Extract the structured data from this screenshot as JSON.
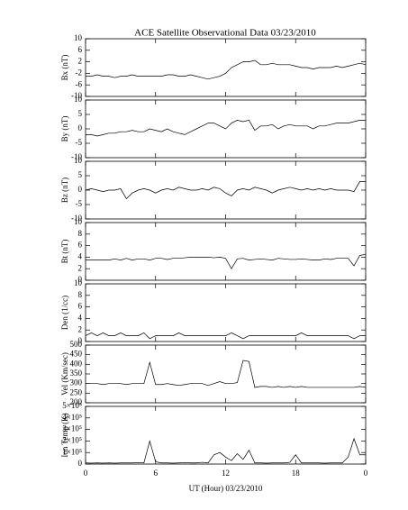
{
  "title": "ACE Satellite Observational Data   03/23/2010",
  "chart_data": [
    {
      "type": "line",
      "ylabel": "Bx (nT)",
      "ylim": [
        -10,
        10
      ],
      "yticks": [
        10,
        6,
        2,
        -2,
        -6,
        -10
      ],
      "x": [
        0,
        0.5,
        1,
        1.5,
        2,
        2.5,
        3,
        3.5,
        4,
        4.5,
        5,
        5.5,
        6,
        6.5,
        7,
        7.5,
        8,
        8.5,
        9,
        9.5,
        10,
        10.5,
        11,
        11.5,
        12,
        12.5,
        13,
        13.5,
        14,
        14.5,
        15,
        15.5,
        16,
        16.5,
        17,
        17.5,
        18,
        18.5,
        19,
        19.5,
        20,
        20.5,
        21,
        21.5,
        22,
        22.5,
        23,
        23.5,
        24
      ],
      "series": [
        {
          "color": "#000000",
          "values": [
            -3,
            -3,
            -2.5,
            -3,
            -3,
            -3.5,
            -3,
            -3,
            -2.5,
            -3,
            -3,
            -3,
            -3,
            -3,
            -2.5,
            -2.5,
            -3,
            -3,
            -2.5,
            -3,
            -3.5,
            -4,
            -3.5,
            -3,
            -2,
            0,
            1,
            2,
            2,
            2.5,
            1,
            1,
            1.5,
            1,
            1,
            1,
            0.5,
            0,
            0,
            -0.5,
            0,
            0,
            0,
            0.5,
            0,
            0.5,
            1,
            1.5,
            1
          ]
        }
      ]
    },
    {
      "type": "line",
      "ylabel": "By (nT)",
      "ylim": [
        -10,
        10
      ],
      "yticks": [
        10,
        5,
        0,
        -5,
        -10
      ],
      "x": [
        0,
        0.5,
        1,
        1.5,
        2,
        2.5,
        3,
        3.5,
        4,
        4.5,
        5,
        5.5,
        6,
        6.5,
        7,
        7.5,
        8,
        8.5,
        9,
        9.5,
        10,
        10.5,
        11,
        11.5,
        12,
        12.5,
        13,
        13.5,
        14,
        14.5,
        15,
        15.5,
        16,
        16.5,
        17,
        17.5,
        18,
        18.5,
        19,
        19.5,
        20,
        20.5,
        21,
        21.5,
        22,
        22.5,
        23,
        23.5,
        24
      ],
      "series": [
        {
          "color": "#000000",
          "values": [
            -2,
            -2,
            -2.5,
            -2,
            -1.5,
            -1.5,
            -1,
            -1,
            -0.5,
            -1,
            -1,
            0,
            -0.5,
            -1,
            0,
            -1,
            -1.5,
            -2,
            -1,
            0,
            1,
            2,
            2,
            1,
            0,
            2,
            3,
            2.5,
            3,
            -0.5,
            1,
            1,
            1.5,
            0,
            1,
            1.5,
            1,
            1,
            1,
            0,
            1,
            1,
            1.5,
            2,
            2,
            2,
            2.5,
            3,
            3
          ]
        }
      ]
    },
    {
      "type": "line",
      "ylabel": "Bz (nT)",
      "ylim": [
        -10,
        10
      ],
      "yticks": [
        10,
        5,
        0,
        -5,
        -10
      ],
      "x": [
        0,
        0.5,
        1,
        1.5,
        2,
        2.5,
        3,
        3.5,
        4,
        4.5,
        5,
        5.5,
        6,
        6.5,
        7,
        7.5,
        8,
        8.5,
        9,
        9.5,
        10,
        10.5,
        11,
        11.5,
        12,
        12.5,
        13,
        13.5,
        14,
        14.5,
        15,
        15.5,
        16,
        16.5,
        17,
        17.5,
        18,
        18.5,
        19,
        19.5,
        20,
        20.5,
        21,
        21.5,
        22,
        22.5,
        23,
        23.5,
        24
      ],
      "series": [
        {
          "color": "#000000",
          "values": [
            0,
            0.5,
            0,
            -0.5,
            0,
            0,
            0.5,
            -3,
            -1,
            0,
            0.5,
            0,
            -1,
            0,
            0.5,
            0,
            1,
            0.5,
            0,
            0,
            0.5,
            0,
            1,
            0.5,
            -1,
            -2,
            0,
            0.5,
            0,
            1,
            0.5,
            0,
            -1,
            0,
            0.5,
            1,
            0.5,
            0,
            0.5,
            0,
            0.5,
            0,
            0.5,
            0,
            0,
            0,
            -0.5,
            3,
            3
          ]
        }
      ]
    },
    {
      "type": "line",
      "ylabel": "Bt (nT)",
      "ylim": [
        0,
        10
      ],
      "yticks": [
        10,
        8,
        6,
        4,
        2,
        0
      ],
      "x": [
        0,
        0.5,
        1,
        1.5,
        2,
        2.5,
        3,
        3.5,
        4,
        4.5,
        5,
        5.5,
        6,
        6.5,
        7,
        7.5,
        8,
        8.5,
        9,
        9.5,
        10,
        10.5,
        11,
        11.5,
        12,
        12.5,
        13,
        13.5,
        14,
        14.5,
        15,
        15.5,
        16,
        16.5,
        17,
        17.5,
        18,
        18.5,
        19,
        19.5,
        20,
        20.5,
        21,
        21.5,
        22,
        22.5,
        23,
        23.5,
        24
      ],
      "series": [
        {
          "color": "#000000",
          "values": [
            3.5,
            3.5,
            3.5,
            3.5,
            3.5,
            3.7,
            3.5,
            3.8,
            3.5,
            3.7,
            3.7,
            3.5,
            3.8,
            3.8,
            3.6,
            3.8,
            3.8,
            3.9,
            4,
            4,
            4,
            4,
            3.9,
            4,
            3.8,
            2,
            3.7,
            3.8,
            3.5,
            3.6,
            3.7,
            3.6,
            3.5,
            3.8,
            3.7,
            3.6,
            3.6,
            3.7,
            3.6,
            3.5,
            3.5,
            3.7,
            3.6,
            3.8,
            3.8,
            3.8,
            2.5,
            4.3,
            4.5
          ]
        }
      ]
    },
    {
      "type": "line",
      "ylabel": "Den (1/cc)",
      "ylim": [
        0,
        10
      ],
      "yticks": [
        10,
        8,
        6,
        4,
        2,
        0
      ],
      "x": [
        0,
        0.5,
        1,
        1.5,
        2,
        2.5,
        3,
        3.5,
        4,
        4.5,
        5,
        5.5,
        6,
        6.5,
        7,
        7.5,
        8,
        8.5,
        9,
        9.5,
        10,
        10.5,
        11,
        11.5,
        12,
        12.5,
        13,
        13.5,
        14,
        14.5,
        15,
        15.5,
        16,
        16.5,
        17,
        17.5,
        18,
        18.5,
        19,
        19.5,
        20,
        20.5,
        21,
        21.5,
        22,
        22.5,
        23,
        23.5,
        24
      ],
      "series": [
        {
          "color": "#000000",
          "values": [
            1,
            1.5,
            1,
            1.5,
            1,
            1,
            1.5,
            1,
            1,
            1,
            1.5,
            0.5,
            1,
            1,
            1,
            1,
            1.5,
            1,
            1,
            1,
            1,
            1,
            1,
            1,
            1,
            1.5,
            1,
            0.5,
            1,
            1,
            1,
            1,
            1,
            1,
            1,
            1,
            1,
            1.5,
            1,
            1,
            1,
            1,
            1,
            1,
            1,
            1,
            0.5,
            1,
            1
          ]
        }
      ]
    },
    {
      "type": "line",
      "ylabel": "Vel (Km/sec)",
      "ylim": [
        200,
        500
      ],
      "yticks": [
        500,
        450,
        400,
        350,
        300,
        250,
        200
      ],
      "x": [
        0,
        0.5,
        1,
        1.5,
        2,
        2.5,
        3,
        3.5,
        4,
        4.5,
        5,
        5.5,
        6,
        6.5,
        7,
        7.5,
        8,
        8.5,
        9,
        9.5,
        10,
        10.5,
        11,
        11.5,
        12,
        12.5,
        13,
        13.5,
        14,
        14.5,
        15,
        15.5,
        16,
        16.5,
        17,
        17.5,
        18,
        18.5,
        19,
        19.5,
        20,
        20.5,
        21,
        21.5,
        22,
        22.5,
        23,
        23.5,
        24
      ],
      "series": [
        {
          "color": "#000000",
          "values": [
            300,
            300,
            300,
            295,
            300,
            300,
            300,
            295,
            300,
            300,
            300,
            410,
            295,
            295,
            300,
            295,
            290,
            295,
            300,
            300,
            300,
            290,
            300,
            310,
            300,
            300,
            305,
            420,
            415,
            280,
            285,
            285,
            280,
            285,
            280,
            285,
            280,
            285,
            280,
            280,
            280,
            280,
            280,
            280,
            280,
            280,
            280,
            285,
            280
          ]
        }
      ]
    },
    {
      "type": "line",
      "ylabel": "Ion Temp (K)",
      "ylim": [
        0,
        500000
      ],
      "yticks": [
        {
          "value": 500000,
          "label": "5×10⁵"
        },
        {
          "value": 400000,
          "label": "4×10⁵"
        },
        {
          "value": 300000,
          "label": "3×10⁵"
        },
        {
          "value": 200000,
          "label": "2×10⁵"
        },
        {
          "value": 100000,
          "label": "1×10⁵"
        },
        0
      ],
      "xlabel": "UT (Hour)  03/23/2010",
      "xlim": [
        0,
        24
      ],
      "xticks": [
        0,
        6,
        12,
        18,
        {
          "value": 24,
          "label": "0"
        }
      ],
      "x": [
        0,
        0.5,
        1,
        1.5,
        2,
        2.5,
        3,
        3.5,
        4,
        4.5,
        5,
        5.5,
        6,
        6.5,
        7,
        7.5,
        8,
        8.5,
        9,
        9.5,
        10,
        10.5,
        11,
        11.5,
        12,
        12.5,
        13,
        13.5,
        14,
        14.5,
        15,
        15.5,
        16,
        16.5,
        17,
        17.5,
        18,
        18.5,
        19,
        19.5,
        20,
        20.5,
        21,
        21.5,
        22,
        22.5,
        23,
        23.5,
        24
      ],
      "series": [
        {
          "color": "#000000",
          "values": [
            10000,
            8000,
            10000,
            8000,
            10000,
            8000,
            10000,
            10000,
            10000,
            12000,
            10000,
            200000,
            20000,
            10000,
            10000,
            8000,
            10000,
            12000,
            10000,
            10000,
            15000,
            10000,
            80000,
            100000,
            60000,
            30000,
            90000,
            40000,
            120000,
            10000,
            10000,
            8000,
            10000,
            10000,
            10000,
            15000,
            80000,
            10000,
            10000,
            10000,
            10000,
            8000,
            10000,
            10000,
            10000,
            60000,
            220000,
            80000,
            80000
          ]
        }
      ]
    }
  ]
}
